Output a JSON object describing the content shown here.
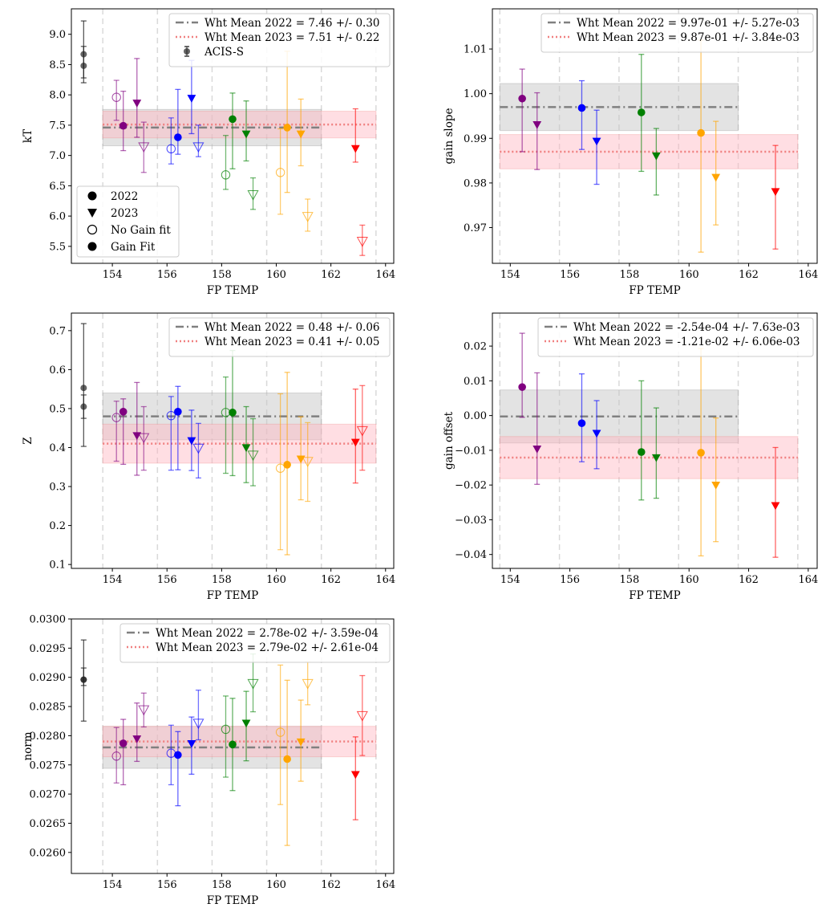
{
  "figure": {
    "shared_xlabel": "FP TEMP"
  },
  "colors": {
    "purple": "#800080",
    "blue": "#0000ff",
    "green": "#008000",
    "orange": "#ffa500",
    "red": "#ff0000",
    "acis": "#222222",
    "mean2022": "#808080",
    "mean2023": "#f08080",
    "band2022": "#c8c8c8",
    "band2023": "#ffb6c1"
  },
  "chart_data": [
    {
      "id": "kT",
      "type": "scatter",
      "xlabel": "FP TEMP",
      "ylabel": "kT",
      "xlim": [
        152.5,
        164.3
      ],
      "ylim": [
        5.22,
        9.42
      ],
      "xticks": [
        "154",
        "156",
        "158",
        "160",
        "162",
        "164"
      ],
      "yticks": [
        "5.5",
        "6.0",
        "6.5",
        "7.0",
        "7.5",
        "8.0",
        "8.5",
        "9.0"
      ],
      "vlines": [
        153.65,
        155.65,
        157.65,
        159.65,
        161.65,
        163.65
      ],
      "mean2022": {
        "value": 7.46,
        "err": 0.3,
        "x0": 153.65,
        "x1": 161.65
      },
      "mean2023": {
        "value": 7.51,
        "err": 0.22,
        "x0": 153.65,
        "x1": 163.65
      },
      "legend_items": [
        "Wht Mean 2022 = 7.46 +/- 0.30",
        "Wht Mean 2023 = 7.51 +/- 0.22",
        "ACIS-S"
      ],
      "legend_pos": "top-right",
      "marker_legend": [
        "2022",
        "2023",
        "No Gain fit",
        "Gain Fit"
      ],
      "acis": [
        {
          "x": 152.95,
          "y": 8.67,
          "lo": 8.28,
          "hi": 9.22
        },
        {
          "x": 152.95,
          "y": 8.48,
          "lo": 8.2,
          "hi": 8.8
        }
      ],
      "points": [
        {
          "x": 154.15,
          "y": 7.96,
          "lo": 7.58,
          "hi": 8.24,
          "c": "purple",
          "m": "o",
          "f": false
        },
        {
          "x": 154.4,
          "y": 7.49,
          "lo": 7.08,
          "hi": 8.06,
          "c": "purple",
          "m": "o",
          "f": true
        },
        {
          "x": 154.9,
          "y": 7.86,
          "lo": 7.3,
          "hi": 8.6,
          "c": "purple",
          "m": "v",
          "f": true
        },
        {
          "x": 155.15,
          "y": 7.14,
          "lo": 6.72,
          "hi": 7.55,
          "c": "purple",
          "m": "v",
          "f": false
        },
        {
          "x": 156.15,
          "y": 7.11,
          "lo": 6.86,
          "hi": 7.62,
          "c": "blue",
          "m": "o",
          "f": false
        },
        {
          "x": 156.4,
          "y": 7.3,
          "lo": 7.02,
          "hi": 8.09,
          "c": "blue",
          "m": "o",
          "f": true
        },
        {
          "x": 156.9,
          "y": 7.94,
          "lo": 7.36,
          "hi": 8.57,
          "c": "blue",
          "m": "v",
          "f": true
        },
        {
          "x": 157.15,
          "y": 7.14,
          "lo": 6.98,
          "hi": 7.5,
          "c": "blue",
          "m": "v",
          "f": false
        },
        {
          "x": 158.15,
          "y": 6.68,
          "lo": 6.44,
          "hi": 7.33,
          "c": "green",
          "m": "o",
          "f": false
        },
        {
          "x": 158.4,
          "y": 7.6,
          "lo": 6.78,
          "hi": 8.03,
          "c": "green",
          "m": "o",
          "f": true
        },
        {
          "x": 158.9,
          "y": 7.35,
          "lo": 6.91,
          "hi": 7.9,
          "c": "green",
          "m": "v",
          "f": true
        },
        {
          "x": 159.15,
          "y": 6.35,
          "lo": 6.11,
          "hi": 6.63,
          "c": "green",
          "m": "v",
          "f": false
        },
        {
          "x": 160.15,
          "y": 6.72,
          "lo": 6.03,
          "hi": 7.44,
          "c": "orange",
          "m": "o",
          "f": false
        },
        {
          "x": 160.4,
          "y": 7.46,
          "lo": 6.39,
          "hi": 8.72,
          "c": "orange",
          "m": "o",
          "f": true
        },
        {
          "x": 160.9,
          "y": 7.35,
          "lo": 6.83,
          "hi": 7.93,
          "c": "orange",
          "m": "v",
          "f": true
        },
        {
          "x": 161.15,
          "y": 5.99,
          "lo": 5.75,
          "hi": 6.28,
          "c": "orange",
          "m": "v",
          "f": false
        },
        {
          "x": 162.9,
          "y": 7.11,
          "lo": 6.89,
          "hi": 7.77,
          "c": "red",
          "m": "v",
          "f": true
        },
        {
          "x": 163.15,
          "y": 5.58,
          "lo": 5.35,
          "hi": 5.85,
          "c": "red",
          "m": "v",
          "f": false
        }
      ]
    },
    {
      "id": "gain-slope",
      "type": "scatter",
      "xlabel": "FP TEMP",
      "ylabel": "gain slope",
      "xlim": [
        153.4,
        164.3
      ],
      "ylim": [
        0.962,
        1.019
      ],
      "xticks": [
        "154",
        "156",
        "158",
        "160",
        "162",
        "164"
      ],
      "yticks": [
        "0.97",
        "0.98",
        "0.99",
        "1.00",
        "1.01"
      ],
      "vlines": [
        153.65,
        155.65,
        157.65,
        159.65,
        161.65,
        163.65
      ],
      "mean2022": {
        "value": 0.997,
        "err": 0.00527,
        "x0": 153.65,
        "x1": 161.65
      },
      "mean2023": {
        "value": 0.987,
        "err": 0.00384,
        "x0": 153.65,
        "x1": 163.65
      },
      "legend_items": [
        "Wht Mean 2022 = 9.97e-01 +/- 5.27e-03",
        "Wht Mean 2023 = 9.87e-01 +/- 3.84e-03"
      ],
      "legend_pos": "top-right",
      "points": [
        {
          "x": 154.4,
          "y": 0.9989,
          "lo": 0.987,
          "hi": 1.0055,
          "c": "purple",
          "m": "o",
          "f": true
        },
        {
          "x": 154.9,
          "y": 0.993,
          "lo": 0.983,
          "hi": 1.0002,
          "c": "purple",
          "m": "v",
          "f": true
        },
        {
          "x": 156.4,
          "y": 0.9968,
          "lo": 0.9875,
          "hi": 1.0029,
          "c": "blue",
          "m": "o",
          "f": true
        },
        {
          "x": 156.9,
          "y": 0.9893,
          "lo": 0.9797,
          "hi": 0.9963,
          "c": "blue",
          "m": "v",
          "f": true
        },
        {
          "x": 158.4,
          "y": 0.9958,
          "lo": 0.9826,
          "hi": 1.0088,
          "c": "green",
          "m": "o",
          "f": true
        },
        {
          "x": 158.9,
          "y": 0.986,
          "lo": 0.9773,
          "hi": 0.9922,
          "c": "green",
          "m": "v",
          "f": true
        },
        {
          "x": 160.4,
          "y": 0.9912,
          "lo": 0.9645,
          "hi": 1.012,
          "c": "orange",
          "m": "o",
          "f": true
        },
        {
          "x": 160.9,
          "y": 0.9812,
          "lo": 0.9706,
          "hi": 0.9938,
          "c": "orange",
          "m": "v",
          "f": true
        },
        {
          "x": 162.9,
          "y": 0.978,
          "lo": 0.9652,
          "hi": 0.9884,
          "c": "red",
          "m": "v",
          "f": true
        }
      ]
    },
    {
      "id": "Z",
      "type": "scatter",
      "xlabel": "FP TEMP",
      "ylabel": "Z",
      "xlim": [
        152.5,
        164.3
      ],
      "ylim": [
        0.09,
        0.745
      ],
      "xticks": [
        "154",
        "156",
        "158",
        "160",
        "162",
        "164"
      ],
      "yticks": [
        "0.1",
        "0.2",
        "0.3",
        "0.4",
        "0.5",
        "0.6",
        "0.7"
      ],
      "vlines": [
        153.65,
        155.65,
        157.65,
        159.65,
        161.65,
        163.65
      ],
      "mean2022": {
        "value": 0.48,
        "err": 0.06,
        "x0": 153.65,
        "x1": 161.65
      },
      "mean2023": {
        "value": 0.41,
        "err": 0.05,
        "x0": 153.65,
        "x1": 163.65
      },
      "legend_items": [
        "Wht Mean 2022 = 0.48 +/- 0.06",
        "Wht Mean 2023 = 0.41 +/- 0.05"
      ],
      "legend_pos": "top-right",
      "acis": [
        {
          "x": 152.95,
          "y": 0.553,
          "lo": 0.403,
          "hi": 0.718
        },
        {
          "x": 152.95,
          "y": 0.505,
          "lo": 0.475,
          "hi": 0.535
        }
      ],
      "points": [
        {
          "x": 154.15,
          "y": 0.477,
          "lo": 0.365,
          "hi": 0.519,
          "c": "purple",
          "m": "o",
          "f": false
        },
        {
          "x": 154.4,
          "y": 0.492,
          "lo": 0.357,
          "hi": 0.525,
          "c": "purple",
          "m": "o",
          "f": true
        },
        {
          "x": 154.9,
          "y": 0.43,
          "lo": 0.329,
          "hi": 0.567,
          "c": "purple",
          "m": "v",
          "f": true
        },
        {
          "x": 155.15,
          "y": 0.425,
          "lo": 0.342,
          "hi": 0.505,
          "c": "purple",
          "m": "v",
          "f": false
        },
        {
          "x": 156.15,
          "y": 0.482,
          "lo": 0.342,
          "hi": 0.531,
          "c": "blue",
          "m": "o",
          "f": false
        },
        {
          "x": 156.4,
          "y": 0.492,
          "lo": 0.343,
          "hi": 0.557,
          "c": "blue",
          "m": "o",
          "f": true
        },
        {
          "x": 156.9,
          "y": 0.417,
          "lo": 0.341,
          "hi": 0.496,
          "c": "blue",
          "m": "v",
          "f": true
        },
        {
          "x": 157.15,
          "y": 0.398,
          "lo": 0.322,
          "hi": 0.462,
          "c": "blue",
          "m": "v",
          "f": false
        },
        {
          "x": 158.15,
          "y": 0.49,
          "lo": 0.334,
          "hi": 0.581,
          "c": "green",
          "m": "o",
          "f": false
        },
        {
          "x": 158.4,
          "y": 0.49,
          "lo": 0.328,
          "hi": 0.649,
          "c": "green",
          "m": "o",
          "f": true
        },
        {
          "x": 158.9,
          "y": 0.399,
          "lo": 0.31,
          "hi": 0.505,
          "c": "green",
          "m": "v",
          "f": true
        },
        {
          "x": 159.15,
          "y": 0.38,
          "lo": 0.302,
          "hi": 0.474,
          "c": "green",
          "m": "v",
          "f": false
        },
        {
          "x": 160.15,
          "y": 0.347,
          "lo": 0.138,
          "hi": 0.538,
          "c": "orange",
          "m": "o",
          "f": false
        },
        {
          "x": 160.4,
          "y": 0.356,
          "lo": 0.125,
          "hi": 0.593,
          "c": "orange",
          "m": "o",
          "f": true
        },
        {
          "x": 160.9,
          "y": 0.37,
          "lo": 0.266,
          "hi": 0.479,
          "c": "orange",
          "m": "v",
          "f": true
        },
        {
          "x": 161.15,
          "y": 0.364,
          "lo": 0.262,
          "hi": 0.464,
          "c": "orange",
          "m": "v",
          "f": false
        },
        {
          "x": 162.9,
          "y": 0.413,
          "lo": 0.309,
          "hi": 0.55,
          "c": "red",
          "m": "v",
          "f": true
        },
        {
          "x": 163.15,
          "y": 0.443,
          "lo": 0.342,
          "hi": 0.559,
          "c": "red",
          "m": "v",
          "f": false
        }
      ]
    },
    {
      "id": "gain-offset",
      "type": "scatter",
      "xlabel": "FP TEMP",
      "ylabel": "gain offset",
      "xlim": [
        153.4,
        164.3
      ],
      "ylim": [
        -0.044,
        0.0295
      ],
      "xticks": [
        "154",
        "156",
        "158",
        "160",
        "162",
        "164"
      ],
      "yticks": [
        "−0.04",
        "−0.03",
        "−0.02",
        "−0.01",
        "0.00",
        "0.01",
        "0.02"
      ],
      "vlines": [
        153.65,
        155.65,
        157.65,
        159.65,
        161.65,
        163.65
      ],
      "mean2022": {
        "value": -0.000254,
        "err": 0.00763,
        "x0": 153.65,
        "x1": 161.65
      },
      "mean2023": {
        "value": -0.0121,
        "err": 0.00606,
        "x0": 153.65,
        "x1": 163.65
      },
      "legend_items": [
        "Wht Mean 2022 = -2.54e-04 +/- 7.63e-03",
        "Wht Mean 2023 = -1.21e-02 +/- 6.06e-03"
      ],
      "legend_pos": "top-right",
      "points": [
        {
          "x": 154.4,
          "y": 0.0082,
          "lo": -0.0005,
          "hi": 0.0237,
          "c": "purple",
          "m": "o",
          "f": true
        },
        {
          "x": 154.9,
          "y": -0.0097,
          "lo": -0.0198,
          "hi": 0.0123,
          "c": "purple",
          "m": "v",
          "f": true
        },
        {
          "x": 156.4,
          "y": -0.0022,
          "lo": -0.0133,
          "hi": 0.012,
          "c": "blue",
          "m": "o",
          "f": true
        },
        {
          "x": 156.9,
          "y": -0.0052,
          "lo": -0.0153,
          "hi": 0.0043,
          "c": "blue",
          "m": "v",
          "f": true
        },
        {
          "x": 158.4,
          "y": -0.0105,
          "lo": -0.0243,
          "hi": 0.01,
          "c": "green",
          "m": "o",
          "f": true
        },
        {
          "x": 158.9,
          "y": -0.0122,
          "lo": -0.0238,
          "hi": 0.0022,
          "c": "green",
          "m": "v",
          "f": true
        },
        {
          "x": 160.4,
          "y": -0.0107,
          "lo": -0.0404,
          "hi": 0.0193,
          "c": "orange",
          "m": "o",
          "f": true
        },
        {
          "x": 160.9,
          "y": -0.0201,
          "lo": -0.0363,
          "hi": -0.0007,
          "c": "orange",
          "m": "v",
          "f": true
        },
        {
          "x": 162.9,
          "y": -0.026,
          "lo": -0.0408,
          "hi": -0.0092,
          "c": "red",
          "m": "v",
          "f": true
        }
      ]
    },
    {
      "id": "norm",
      "type": "scatter",
      "xlabel": "FP TEMP",
      "ylabel": "norm",
      "xlim": [
        152.5,
        164.3
      ],
      "ylim": [
        0.02564,
        0.03
      ],
      "xticks": [
        "154",
        "156",
        "158",
        "160",
        "162",
        "164"
      ],
      "yticks": [
        "0.0260",
        "0.0265",
        "0.0270",
        "0.0275",
        "0.0280",
        "0.0285",
        "0.0290",
        "0.0295",
        "0.0300"
      ],
      "vlines": [
        153.65,
        155.65,
        157.65,
        159.65,
        161.65,
        163.65
      ],
      "mean2022": {
        "value": 0.0278,
        "err": 0.000359,
        "x0": 153.65,
        "x1": 161.65
      },
      "mean2023": {
        "value": 0.0279,
        "err": 0.000261,
        "x0": 153.65,
        "x1": 163.65
      },
      "legend_items": [
        "Wht Mean 2022 = 2.78e-02 +/- 3.59e-04",
        "Wht Mean 2023 = 2.79e-02 +/- 2.61e-04"
      ],
      "legend_pos": "top-right",
      "acis": [
        {
          "x": 152.95,
          "y": 0.02896,
          "lo": 0.02825,
          "hi": 0.02964
        },
        {
          "x": 152.95,
          "y": 0.02896,
          "lo": 0.02886,
          "hi": 0.02916
        }
      ],
      "points": [
        {
          "x": 154.15,
          "y": 0.02765,
          "lo": 0.02719,
          "hi": 0.02814,
          "c": "purple",
          "m": "o",
          "f": false
        },
        {
          "x": 154.4,
          "y": 0.02787,
          "lo": 0.02716,
          "hi": 0.02828,
          "c": "purple",
          "m": "o",
          "f": true
        },
        {
          "x": 154.9,
          "y": 0.02794,
          "lo": 0.02756,
          "hi": 0.02856,
          "c": "purple",
          "m": "v",
          "f": true
        },
        {
          "x": 155.15,
          "y": 0.02844,
          "lo": 0.02815,
          "hi": 0.02873,
          "c": "purple",
          "m": "v",
          "f": false
        },
        {
          "x": 156.15,
          "y": 0.0277,
          "lo": 0.02716,
          "hi": 0.02818,
          "c": "blue",
          "m": "o",
          "f": false
        },
        {
          "x": 156.4,
          "y": 0.02767,
          "lo": 0.0268,
          "hi": 0.02807,
          "c": "blue",
          "m": "o",
          "f": true
        },
        {
          "x": 156.9,
          "y": 0.02786,
          "lo": 0.02734,
          "hi": 0.02832,
          "c": "blue",
          "m": "v",
          "f": true
        },
        {
          "x": 157.15,
          "y": 0.02821,
          "lo": 0.02793,
          "hi": 0.02878,
          "c": "blue",
          "m": "v",
          "f": false
        },
        {
          "x": 158.15,
          "y": 0.02811,
          "lo": 0.02729,
          "hi": 0.02868,
          "c": "green",
          "m": "o",
          "f": false
        },
        {
          "x": 158.4,
          "y": 0.02785,
          "lo": 0.02706,
          "hi": 0.02864,
          "c": "green",
          "m": "o",
          "f": true
        },
        {
          "x": 158.9,
          "y": 0.02821,
          "lo": 0.02757,
          "hi": 0.02876,
          "c": "green",
          "m": "v",
          "f": true
        },
        {
          "x": 159.15,
          "y": 0.02889,
          "lo": 0.02841,
          "hi": 0.0294,
          "c": "green",
          "m": "v",
          "f": false
        },
        {
          "x": 160.15,
          "y": 0.02806,
          "lo": 0.02682,
          "hi": 0.02921,
          "c": "orange",
          "m": "o",
          "f": false
        },
        {
          "x": 160.4,
          "y": 0.0276,
          "lo": 0.02612,
          "hi": 0.02895,
          "c": "orange",
          "m": "o",
          "f": true
        },
        {
          "x": 160.9,
          "y": 0.02789,
          "lo": 0.02722,
          "hi": 0.02861,
          "c": "orange",
          "m": "v",
          "f": true
        },
        {
          "x": 161.15,
          "y": 0.02889,
          "lo": 0.02853,
          "hi": 0.02926,
          "c": "orange",
          "m": "v",
          "f": false
        },
        {
          "x": 162.9,
          "y": 0.02733,
          "lo": 0.02656,
          "hi": 0.02798,
          "c": "red",
          "m": "v",
          "f": true
        },
        {
          "x": 163.15,
          "y": 0.02834,
          "lo": 0.02766,
          "hi": 0.02903,
          "c": "red",
          "m": "v",
          "f": false
        }
      ]
    }
  ]
}
